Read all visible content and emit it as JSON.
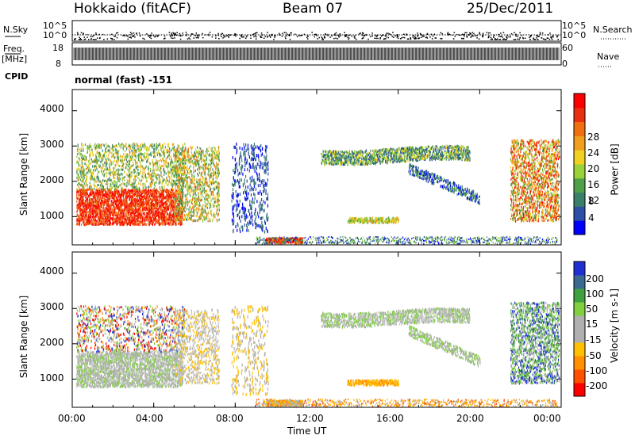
{
  "header": {
    "station": "Hokkaido (fitACF)",
    "beam": "Beam 07",
    "date": "25/Dec/2011"
  },
  "side_labels": {
    "nsky": "N.Sky",
    "freq": "Freq.",
    "mhz": "[MHz]",
    "cpid": "CPID",
    "nsearch": "N.Search",
    "nave": "Nave"
  },
  "mode_text": "normal (fast) -151",
  "colors": {
    "power_scale": [
      "#0000ff",
      "#2d4fa8",
      "#3a7f6a",
      "#4fa04a",
      "#9ad23a",
      "#f0d020",
      "#f0a020",
      "#f07010",
      "#e83010",
      "#ff0000"
    ],
    "velocity_scale": [
      "#ff0000",
      "#ff5000",
      "#ff9000",
      "#ffc000",
      "#b0b0b0",
      "#b0b0b0",
      "#80d040",
      "#40a040",
      "#3a6a90",
      "#2030d0"
    ]
  },
  "chart_data": [
    {
      "type": "line",
      "name": "noise-panel",
      "ylabel_left": "N.Sky",
      "ylabel_right": "N.Search",
      "left_ticks": [
        "10^5",
        "10^0"
      ],
      "right_ticks": [
        "10^5",
        "10^0"
      ]
    },
    {
      "type": "line",
      "name": "frequency-panel",
      "left_ticks": [
        "18",
        "8"
      ],
      "right_ticks": [
        "60",
        "0"
      ]
    },
    {
      "type": "heatmap",
      "name": "power-panel",
      "ylabel": "Slant Range [km]",
      "y_ticks": [
        "1000",
        "2000",
        "3000",
        "4000"
      ],
      "colorbar_label": "Power [dB]",
      "colorbar_ticks": [
        "4",
        "8",
        "12",
        "16",
        "20",
        "24",
        "28"
      ],
      "ylim": [
        200,
        4600
      ],
      "clim": [
        0,
        32
      ]
    },
    {
      "type": "heatmap",
      "name": "velocity-panel",
      "ylabel": "Slant Range [km]",
      "y_ticks": [
        "1000",
        "2000",
        "3000",
        "4000"
      ],
      "colorbar_label": "Velocity [m s-1]",
      "colorbar_ticks": [
        "-200",
        "-100",
        "-50",
        "-15",
        "15",
        "50",
        "100",
        "200"
      ],
      "ylim": [
        200,
        4600
      ]
    },
    {
      "type": "axis",
      "name": "time-axis",
      "xlabel": "Time UT",
      "x_ticks": [
        "00:00",
        "04:00",
        "08:00",
        "12:00",
        "16:00",
        "20:00",
        "00:00"
      ],
      "xlim": [
        0,
        24
      ]
    }
  ]
}
